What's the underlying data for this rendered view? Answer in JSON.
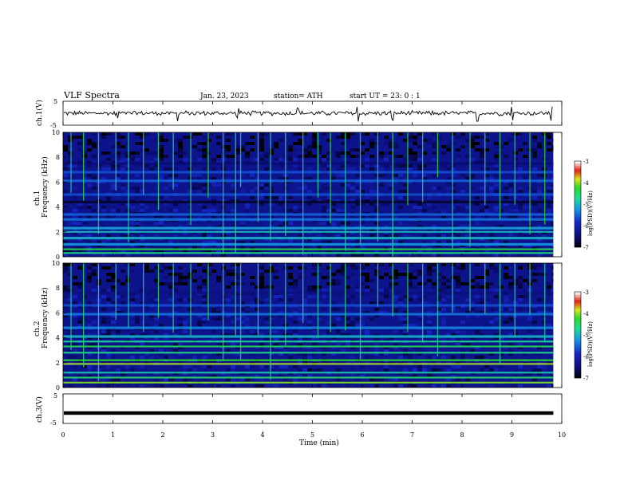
{
  "header": {
    "title": "VLF  Spectra",
    "date": "Jan. 23, 2023",
    "station": "station= ATH",
    "start": "start  UT  =    23: 0   : 1"
  },
  "colors": {
    "trace": "#000000",
    "axis": "#000000",
    "background": "#ffffff",
    "spectrogram_background": "#0a1a8c"
  },
  "chart_data": [
    {
      "type": "line",
      "name": "ch1-waveform",
      "ylabel": "ch.1(V)",
      "ylim": [
        -5,
        5
      ],
      "yticks": [
        "5",
        "-5"
      ],
      "xlim": [
        0,
        10
      ],
      "x_extent": [
        0,
        9.83
      ],
      "approx_level": 0,
      "approx_amplitude": 0.8,
      "spikes": [
        1.1,
        2.3,
        3.5,
        4.7,
        5.9,
        6.6,
        8.3,
        9.0,
        9.8
      ]
    },
    {
      "type": "heatmap",
      "name": "ch1-spectrogram",
      "ylabel": "ch.1\nFrequency  (kHz)",
      "ylim": [
        0,
        10
      ],
      "yticks": [
        "0",
        "2",
        "4",
        "6",
        "8",
        "10"
      ],
      "xlim": [
        0,
        10
      ],
      "x_extent": [
        0,
        9.83
      ],
      "colorbar": {
        "label": "log(PSD)(V²/Hz)",
        "range": [
          -7,
          -3
        ],
        "ticks": [
          "-3",
          "-4",
          "-5",
          "-6",
          "-7"
        ],
        "colormap": "blue-cyan-green-yellow-red-white"
      },
      "bands_khz": [
        {
          "f": 0.3,
          "level": -4.6
        },
        {
          "f": 0.6,
          "level": -4.3
        },
        {
          "f": 1.0,
          "level": -5.2
        },
        {
          "f": 1.5,
          "level": -5.0
        },
        {
          "f": 2.0,
          "level": -4.9
        },
        {
          "f": 2.3,
          "level": -5.1
        },
        {
          "f": 3.0,
          "level": -5.4
        },
        {
          "f": 3.4,
          "level": -5.5
        },
        {
          "f": 4.4,
          "level": -6.8
        },
        {
          "f": 5.0,
          "level": -5.6
        },
        {
          "f": 6.1,
          "level": -5.5
        },
        {
          "f": 6.8,
          "level": -5.6
        },
        {
          "f": 7.5,
          "level": -6.5
        }
      ],
      "sferic_times_min": [
        0.15,
        0.4,
        0.7,
        1.05,
        1.3,
        1.6,
        1.9,
        2.2,
        2.55,
        2.9,
        3.2,
        3.45,
        3.55,
        3.9,
        4.15,
        4.45,
        4.8,
        5.1,
        5.35,
        5.65,
        5.95,
        6.3,
        6.6,
        6.9,
        7.2,
        7.5,
        7.8,
        8.15,
        8.45,
        8.75,
        9.05,
        9.35,
        9.65
      ]
    },
    {
      "type": "heatmap",
      "name": "ch2-spectrogram",
      "ylabel": "ch.2\nFrequency  (kHz)",
      "ylim": [
        0,
        10
      ],
      "yticks": [
        "0",
        "2",
        "4",
        "6",
        "8",
        "10"
      ],
      "xlim": [
        0,
        10
      ],
      "x_extent": [
        0,
        9.83
      ],
      "colorbar": {
        "label": "log(PSD)(V²/Hz)",
        "range": [
          -7,
          -3
        ],
        "ticks": [
          "-3",
          "-4",
          "-5",
          "-6",
          "-7"
        ],
        "colormap": "blue-cyan-green-yellow-red-white"
      },
      "bands_khz": [
        {
          "f": 0.4,
          "level": -4.0
        },
        {
          "f": 0.8,
          "level": -4.5
        },
        {
          "f": 1.2,
          "level": -4.8
        },
        {
          "f": 1.9,
          "level": -3.9
        },
        {
          "f": 2.2,
          "level": -4.2
        },
        {
          "f": 2.8,
          "level": -4.6
        },
        {
          "f": 3.3,
          "level": -4.4
        },
        {
          "f": 3.7,
          "level": -4.7
        },
        {
          "f": 4.1,
          "level": -5.0
        },
        {
          "f": 4.8,
          "level": -5.3
        },
        {
          "f": 5.9,
          "level": -5.4
        },
        {
          "f": 6.6,
          "level": -5.6
        },
        {
          "f": 7.6,
          "level": -6.4
        }
      ],
      "sferic_times_min": [
        0.15,
        0.4,
        0.7,
        1.05,
        1.3,
        1.6,
        1.9,
        2.2,
        2.55,
        2.9,
        3.2,
        3.45,
        3.55,
        3.9,
        4.15,
        4.45,
        4.8,
        5.1,
        5.35,
        5.65,
        5.95,
        6.3,
        6.6,
        6.9,
        7.2,
        7.5,
        7.8,
        8.15,
        8.45,
        8.75,
        9.05,
        9.35,
        9.65
      ]
    },
    {
      "type": "line",
      "name": "ch3-waveform",
      "ylabel": "ch.3(V)",
      "ylim": [
        -5,
        5
      ],
      "yticks": [
        "5",
        "-5"
      ],
      "xlim": [
        0,
        10
      ],
      "x_extent": [
        0,
        9.83
      ],
      "approx_level": -1.5,
      "approx_amplitude": 0.3
    }
  ],
  "x_axis": {
    "label": "Time  (min)",
    "ticks": [
      "0",
      "1",
      "2",
      "3",
      "4",
      "5",
      "6",
      "7",
      "8",
      "9",
      "10"
    ]
  }
}
